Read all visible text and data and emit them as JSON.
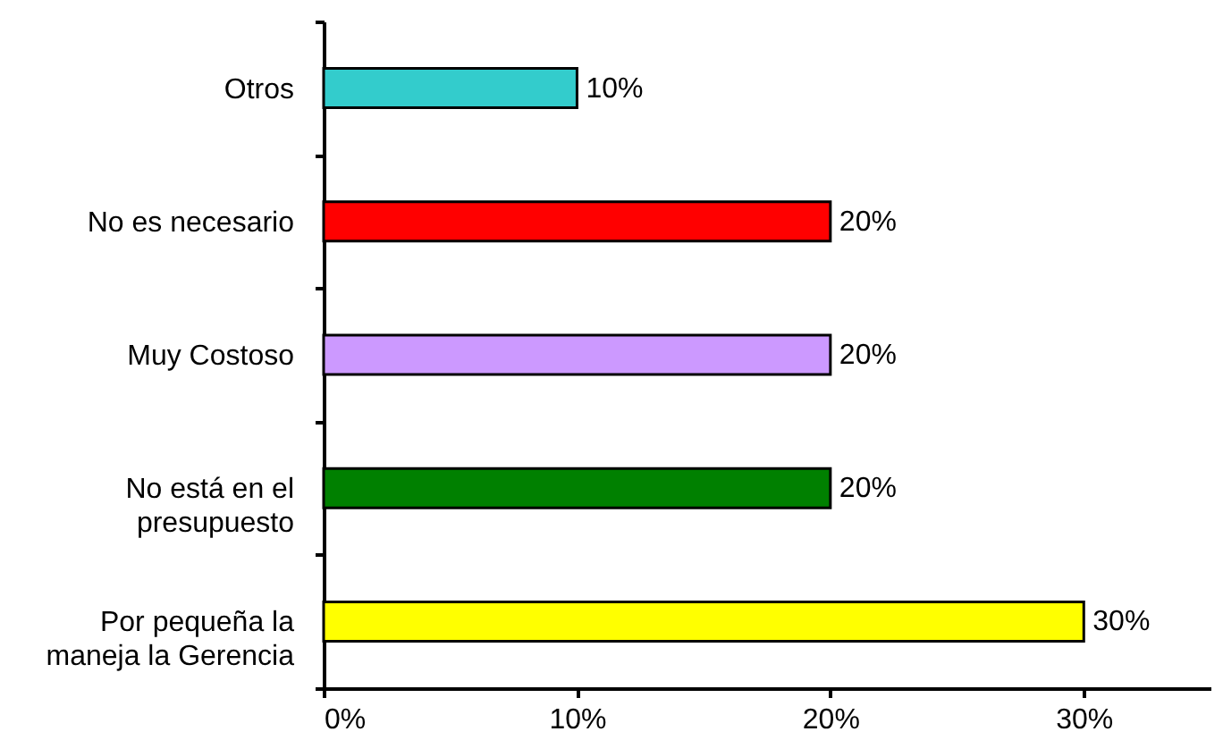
{
  "chart_data": {
    "type": "bar",
    "orientation": "horizontal",
    "categories": [
      "Otros",
      "No es necesario",
      "Muy Costoso",
      "No está en el presupuesto",
      "Por pequeña la maneja la Gerencia"
    ],
    "values": [
      10,
      20,
      20,
      20,
      30
    ],
    "colors": [
      "#33cccc",
      "#ff0000",
      "#cc99ff",
      "#008000",
      "#ffff00"
    ],
    "value_labels": [
      "10%",
      "20%",
      "20%",
      "20%",
      "30%"
    ],
    "xlim": [
      0,
      35
    ],
    "xticks": [
      {
        "value": 0,
        "label": "0%"
      },
      {
        "value": 10,
        "label": "10%"
      },
      {
        "value": 20,
        "label": "20%"
      },
      {
        "value": 30,
        "label": "30%"
      }
    ]
  }
}
